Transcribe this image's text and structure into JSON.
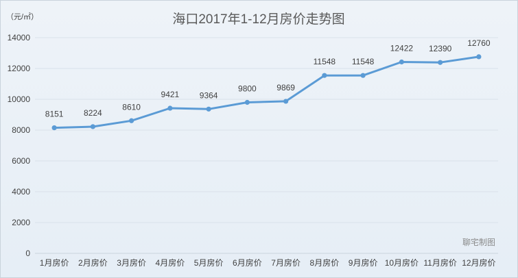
{
  "chart_data": {
    "type": "line",
    "title": "海口2017年1-12月房价走势图",
    "unit_label": "（元/㎡）",
    "categories": [
      "1月房价",
      "2月房价",
      "3月房价",
      "4月房价",
      "5月房价",
      "6月房价",
      "7月房价",
      "8月房价",
      "9月房价",
      "10月房价",
      "11月房价",
      "12月房价"
    ],
    "values": [
      8151,
      8224,
      8610,
      9421,
      9364,
      9800,
      9869,
      11548,
      11548,
      12422,
      12390,
      12760
    ],
    "ylim": [
      0,
      14000
    ],
    "yticks": [
      0,
      2000,
      4000,
      6000,
      8000,
      10000,
      12000,
      14000
    ],
    "grid": true,
    "line_color": "#5b9bd5"
  },
  "watermark": "聊宅制图"
}
